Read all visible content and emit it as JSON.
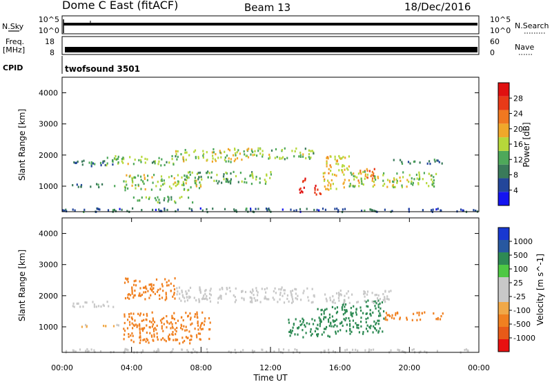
{
  "header": {
    "station": "Dome C East (fitACF)",
    "beam": "Beam 13",
    "date": "18/Dec/2016"
  },
  "nsky_panel": {
    "label": "N.Sky",
    "yticks_left": [
      "10^5",
      "10^0"
    ],
    "yticks_right": [
      "10^5",
      "10^0"
    ],
    "right_label": "N.Search"
  },
  "freq_panel": {
    "label_line1": "Freq.",
    "label_line2": "[MHz]",
    "yticks_left": [
      "18",
      "8"
    ],
    "yticks_right": [
      "60",
      "0"
    ],
    "right_label": "Nave"
  },
  "cpid_panel": {
    "label": "CPID",
    "program": "twofsound 3501"
  },
  "colors": {
    "power_scale": [
      "#1414f0",
      "#23469a",
      "#3a7a5a",
      "#4ea85a",
      "#b6d83a",
      "#f0a82a",
      "#f07820",
      "#e83a18",
      "#e01010"
    ],
    "velocity_scale": [
      "#e81010",
      "#e85a18",
      "#f08020",
      "#f0a848",
      "#c8c8c8",
      "#c8c8c8",
      "#4ec844",
      "#2e8a54",
      "#2858a0",
      "#1838d0"
    ]
  },
  "chart_data": [
    {
      "type": "heatmap",
      "title": "",
      "xlabel": "",
      "ylabel": "Slant Range [km]",
      "colorbar_label": "Power [dB]",
      "colorbar_ticks": [
        "4",
        "8",
        "12",
        "16",
        "20",
        "24",
        "28"
      ],
      "xlim": [
        0,
        24
      ],
      "ylim": [
        180,
        4500
      ],
      "yticks": [
        "1000",
        "2000",
        "3000",
        "4000"
      ],
      "blobs": [
        {
          "x0": 0.0,
          "x1": 24.0,
          "y0": 200,
          "y1": 320,
          "value": 7
        },
        {
          "x0": 0.5,
          "x1": 3.0,
          "y0": 1650,
          "y1": 1850,
          "value": 9
        },
        {
          "x0": 2.5,
          "x1": 6.5,
          "y0": 1700,
          "y1": 2000,
          "value": 14
        },
        {
          "x0": 6.5,
          "x1": 11.0,
          "y0": 1800,
          "y1": 2250,
          "value": 16
        },
        {
          "x0": 11.0,
          "x1": 14.5,
          "y0": 1900,
          "y1": 2250,
          "value": 14
        },
        {
          "x0": 0.5,
          "x1": 3.5,
          "y0": 1000,
          "y1": 1100,
          "value": 10
        },
        {
          "x0": 3.5,
          "x1": 8.0,
          "y0": 900,
          "y1": 1400,
          "value": 15
        },
        {
          "x0": 4.0,
          "x1": 7.5,
          "y0": 500,
          "y1": 700,
          "value": 13
        },
        {
          "x0": 7.0,
          "x1": 12.0,
          "y0": 1100,
          "y1": 1500,
          "value": 12
        },
        {
          "x0": 13.5,
          "x1": 14.0,
          "y0": 800,
          "y1": 1300,
          "value": 28
        },
        {
          "x0": 14.5,
          "x1": 15.0,
          "y0": 650,
          "y1": 1050,
          "value": 28
        },
        {
          "x0": 15.0,
          "x1": 16.5,
          "y0": 900,
          "y1": 2000,
          "value": 18
        },
        {
          "x0": 17.0,
          "x1": 18.0,
          "y0": 1200,
          "y1": 1700,
          "value": 24
        },
        {
          "x0": 16.5,
          "x1": 21.5,
          "y0": 1000,
          "y1": 1500,
          "value": 15
        },
        {
          "x0": 19.0,
          "x1": 22.0,
          "y0": 1750,
          "y1": 1900,
          "value": 9
        }
      ]
    },
    {
      "type": "heatmap",
      "title": "",
      "xlabel": "Time UT",
      "ylabel": "Slant Range [km]",
      "colorbar_label": "Velocity [m s^-1]",
      "colorbar_ticks": [
        "-1000",
        "-500",
        "-100",
        "-25",
        "25",
        "100",
        "500",
        "1000"
      ],
      "xlim": [
        0,
        24
      ],
      "ylim": [
        180,
        4500
      ],
      "xticks": [
        "00:00",
        "04:00",
        "08:00",
        "12:00",
        "16:00",
        "20:00",
        "00:00"
      ],
      "yticks": [
        "1000",
        "2000",
        "3000",
        "4000"
      ],
      "blobs": [
        {
          "x0": 0.0,
          "x1": 24.0,
          "y0": 200,
          "y1": 320,
          "value": 0
        },
        {
          "x0": 0.5,
          "x1": 3.0,
          "y0": 1650,
          "y1": 1850,
          "value": 0
        },
        {
          "x0": 3.5,
          "x1": 6.5,
          "y0": 1900,
          "y1": 2600,
          "value": -300
        },
        {
          "x0": 6.5,
          "x1": 14.5,
          "y0": 1800,
          "y1": 2300,
          "value": 0
        },
        {
          "x0": 1.0,
          "x1": 3.5,
          "y0": 1000,
          "y1": 1100,
          "value": -50
        },
        {
          "x0": 3.5,
          "x1": 8.5,
          "y0": 600,
          "y1": 1500,
          "value": -300
        },
        {
          "x0": 4.0,
          "x1": 7.5,
          "y0": 500,
          "y1": 650,
          "value": -300
        },
        {
          "x0": 13.0,
          "x1": 14.5,
          "y0": 700,
          "y1": 1300,
          "value": 300
        },
        {
          "x0": 14.5,
          "x1": 16.0,
          "y0": 700,
          "y1": 1700,
          "value": 300
        },
        {
          "x0": 16.0,
          "x1": 18.5,
          "y0": 800,
          "y1": 1900,
          "value": 300
        },
        {
          "x0": 18.5,
          "x1": 22.0,
          "y0": 1250,
          "y1": 1500,
          "value": -300
        },
        {
          "x0": 15.0,
          "x1": 19.0,
          "y0": 1800,
          "y1": 2200,
          "value": 0
        }
      ]
    }
  ]
}
